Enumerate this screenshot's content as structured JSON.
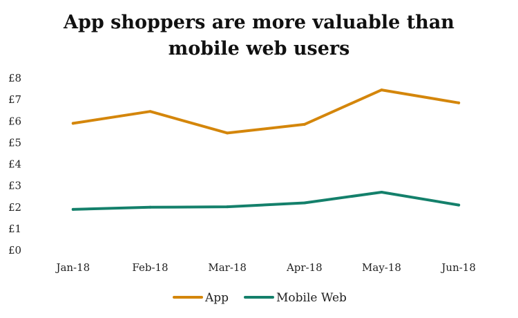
{
  "chart_data": {
    "type": "line",
    "title_line1": "App shoppers are more valuable than",
    "title_line2": "mobile web users",
    "categories": [
      "Jan-18",
      "Feb-18",
      "Mar-18",
      "Apr-18",
      "May-18",
      "Jun-18"
    ],
    "y_ticks": [
      "£0",
      "£1",
      "£2",
      "£3",
      "£4",
      "£5",
      "£6",
      "£7",
      "£8"
    ],
    "ylim": [
      0,
      8
    ],
    "grid": false,
    "legend_position": "bottom",
    "series": [
      {
        "name": "App",
        "color": "#D4860B",
        "values": [
          5.9,
          6.45,
          5.45,
          5.85,
          7.45,
          6.85
        ]
      },
      {
        "name": "Mobile Web",
        "color": "#14806B",
        "values": [
          1.9,
          2.0,
          2.02,
          2.2,
          2.7,
          2.1
        ]
      }
    ]
  }
}
